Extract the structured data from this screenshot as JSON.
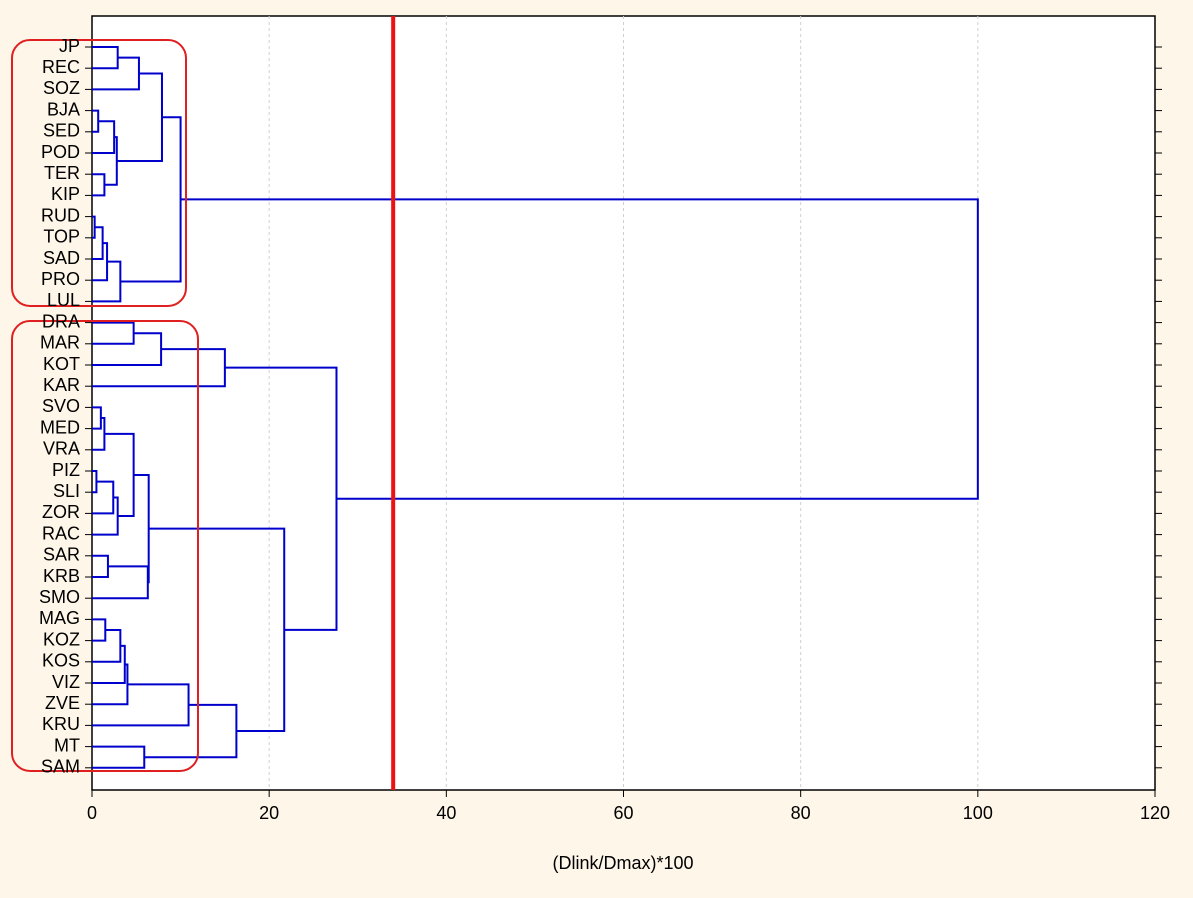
{
  "chart_data": {
    "type": "dendrogram",
    "x_label": "(Dlink/Dmax)*100",
    "xlim": [
      0,
      120
    ],
    "xticks": [
      0,
      20,
      40,
      60,
      80,
      100,
      120
    ],
    "grid": true,
    "color": "#0000cc",
    "cut_height": 34,
    "cut_color": "#ee1111",
    "labels": [
      "JP",
      "REC",
      "SOZ",
      "BJA",
      "SED",
      "POD",
      "TER",
      "KIP",
      "RUD",
      "TOP",
      "SAD",
      "PRO",
      "LUL",
      "DRA",
      "MAR",
      "KOT",
      "KAR",
      "SVO",
      "MED",
      "VRA",
      "PIZ",
      "SLI",
      "ZOR",
      "RAC",
      "SAR",
      "KRB",
      "SMO",
      "MAG",
      "KOZ",
      "KOS",
      "VIZ",
      "ZVE",
      "KRU",
      "MT",
      "SAM"
    ],
    "merges": [
      {
        "join": [
          0,
          1
        ],
        "height": 2.9
      },
      {
        "join": [
          35,
          2
        ],
        "height": 5.3
      },
      {
        "join": [
          3,
          4
        ],
        "height": 0.7
      },
      {
        "join": [
          37,
          5
        ],
        "height": 2.5
      },
      {
        "join": [
          6,
          7
        ],
        "height": 1.4
      },
      {
        "join": [
          38,
          39
        ],
        "height": 2.8
      },
      {
        "join": [
          36,
          40
        ],
        "height": 7.9
      },
      {
        "join": [
          8,
          9
        ],
        "height": 0.3
      },
      {
        "join": [
          42,
          10
        ],
        "height": 1.2
      },
      {
        "join": [
          43,
          11
        ],
        "height": 1.7
      },
      {
        "join": [
          44,
          12
        ],
        "height": 3.2
      },
      {
        "join": [
          41,
          45
        ],
        "height": 10.0
      },
      {
        "join": [
          13,
          14
        ],
        "height": 4.7
      },
      {
        "join": [
          47,
          15
        ],
        "height": 7.8
      },
      {
        "join": [
          48,
          16
        ],
        "height": 15.0
      },
      {
        "join": [
          17,
          18
        ],
        "height": 1.0
      },
      {
        "join": [
          50,
          19
        ],
        "height": 1.4
      },
      {
        "join": [
          20,
          21
        ],
        "height": 0.5
      },
      {
        "join": [
          52,
          22
        ],
        "height": 2.4
      },
      {
        "join": [
          53,
          23
        ],
        "height": 2.9
      },
      {
        "join": [
          51,
          54
        ],
        "height": 4.7
      },
      {
        "join": [
          24,
          25
        ],
        "height": 1.8
      },
      {
        "join": [
          56,
          26
        ],
        "height": 6.3
      },
      {
        "join": [
          55,
          57
        ],
        "height": 6.4
      },
      {
        "join": [
          27,
          28
        ],
        "height": 1.5
      },
      {
        "join": [
          59,
          29
        ],
        "height": 3.2
      },
      {
        "join": [
          60,
          30
        ],
        "height": 3.7
      },
      {
        "join": [
          61,
          31
        ],
        "height": 4.0
      },
      {
        "join": [
          62,
          32
        ],
        "height": 10.9
      },
      {
        "join": [
          33,
          34
        ],
        "height": 5.9
      },
      {
        "join": [
          63,
          64
        ],
        "height": 16.3
      },
      {
        "join": [
          58,
          65
        ],
        "height": 21.7
      },
      {
        "join": [
          49,
          66
        ],
        "height": 27.6
      },
      {
        "join": [
          46,
          67
        ],
        "height": 100
      }
    ]
  }
}
